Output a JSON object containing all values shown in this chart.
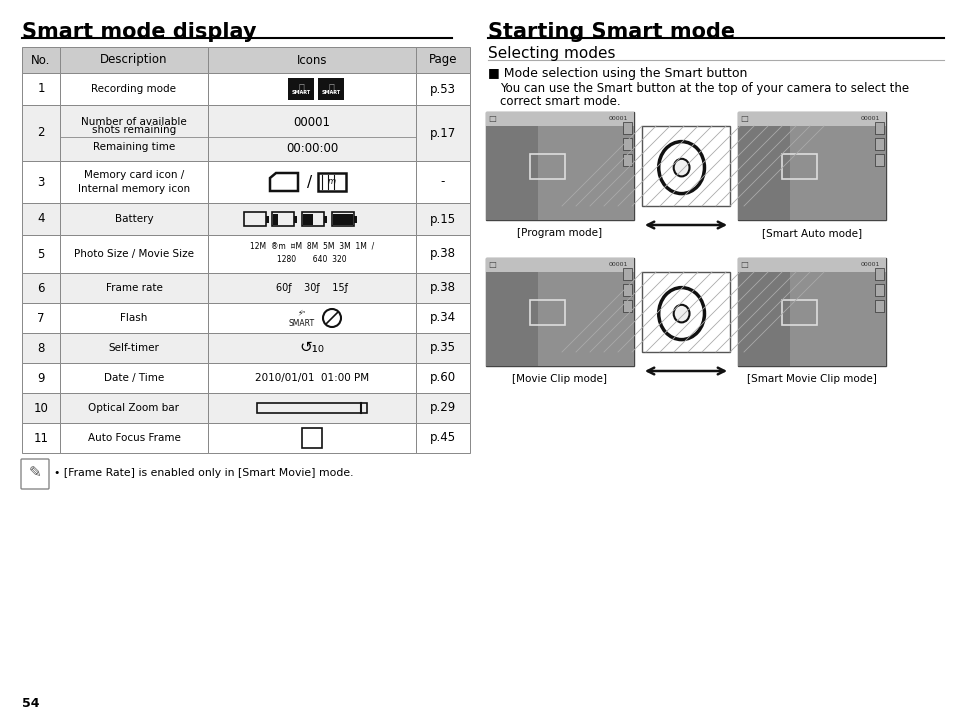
{
  "bg_color": "#ffffff",
  "left_title": "Smart mode display",
  "right_title": "Starting Smart mode",
  "subheading": "Selecting modes",
  "bullet_heading": "■ Mode selection using the Smart button",
  "body_text_line1": "You can use the Smart button at the top of your camera to select the",
  "body_text_line2": "correct smart mode.",
  "note_text": "• [Frame Rate] is enabled only in [Smart Movie] mode.",
  "caption_program": "[Program mode]",
  "caption_smart_auto": "[Smart Auto mode]",
  "caption_movie_clip": "[Movie Clip mode]",
  "caption_smart_movie": "[Smart Movie Clip mode]",
  "page_number": "54",
  "header_bg": "#cccccc",
  "row_bg_odd": "#eeeeee",
  "row_bg_even": "#ffffff",
  "border_color": "#888888",
  "title_underline_color": "#000000",
  "subheading_underline_color": "#aaaaaa"
}
